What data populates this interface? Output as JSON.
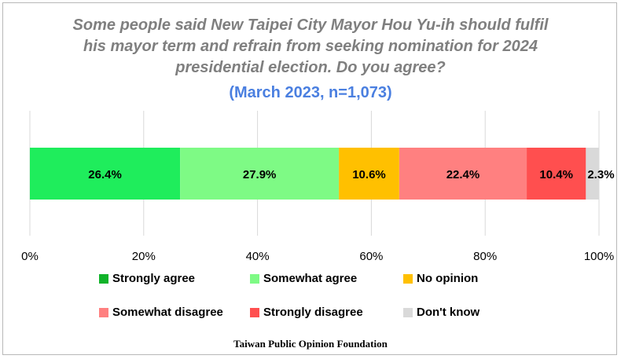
{
  "chart_data": {
    "type": "bar",
    "orientation": "horizontal-stacked-100",
    "title": "Some people said New Taipei City Mayor Hou Yu-ih should fulfil his mayor term and refrain from seeking nomination for 2024 presidential election. Do you agree?",
    "title_lines": [
      "Some people said New Taipei City Mayor Hou Yu-ih should fulfil",
      "his mayor term and refrain from seeking nomination for 2024",
      "presidential election. Do you agree?"
    ],
    "subtitle": "(March 2023, n=1,073)",
    "xlim": [
      0,
      100
    ],
    "x_ticks": [
      "0%",
      "20%",
      "40%",
      "60%",
      "80%",
      "100%"
    ],
    "grid": true,
    "legend_placement": "bottom",
    "series": [
      {
        "name": "Strongly agree",
        "value": 26.4,
        "label": "26.4%",
        "color": "#1fed5c",
        "legend_color": "#10b32a"
      },
      {
        "name": "Somewhat agree",
        "value": 27.9,
        "label": "27.9%",
        "color": "#7efa85",
        "legend_color": "#7efa85"
      },
      {
        "name": "No opinion",
        "value": 10.6,
        "label": "10.6%",
        "color": "#ffc000",
        "legend_color": "#ffc000"
      },
      {
        "name": "Somewhat disagree",
        "value": 22.4,
        "label": "22.4%",
        "color": "#ff8080",
        "legend_color": "#ff8080"
      },
      {
        "name": "Strongly disagree",
        "value": 10.4,
        "label": "10.4%",
        "color": "#ff4f4f",
        "legend_color": "#ff4f4f"
      },
      {
        "name": "Don't know",
        "value": 2.3,
        "label": "2.3%",
        "color": "#d9d9d9",
        "legend_color": "#d9d9d9"
      }
    ]
  },
  "source": "Taiwan Public Opinion Foundation"
}
